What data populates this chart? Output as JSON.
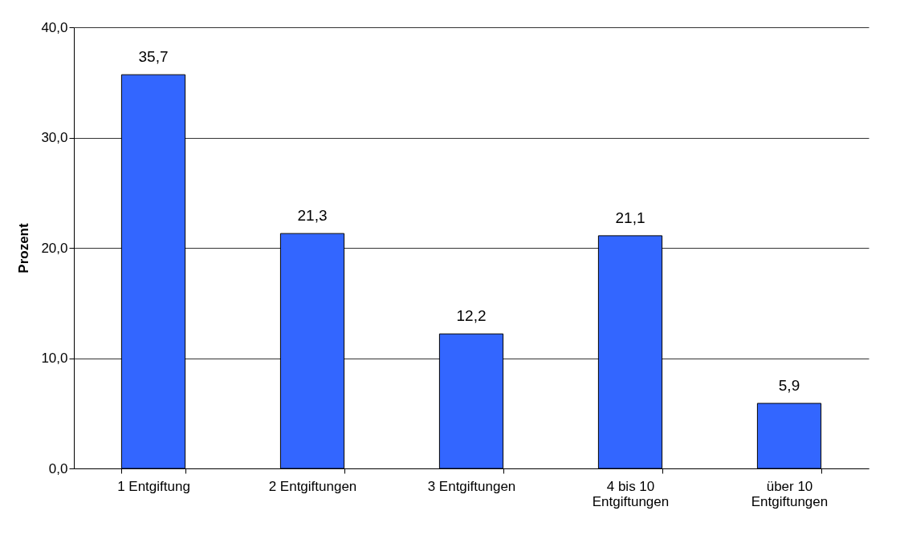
{
  "chart_data": {
    "type": "bar",
    "ylabel": "Prozent",
    "categories": [
      "1 Entgiftung",
      "2 Entgiftungen",
      "3 Entgiftungen",
      "4 bis 10 Entgiftungen",
      "über 10 Entgiftungen"
    ],
    "values": [
      35.7,
      21.3,
      12.2,
      21.1,
      5.9
    ],
    "value_labels": [
      "35,7",
      "21,3",
      "12,2",
      "21,1",
      "5,9"
    ],
    "color": "#3366ff",
    "ylim": [
      0,
      40
    ],
    "yticks": [
      {
        "value": 0,
        "label": "0,0"
      },
      {
        "value": 10,
        "label": "10,0"
      },
      {
        "value": 20,
        "label": "20,0"
      },
      {
        "value": 30,
        "label": "30,0"
      },
      {
        "value": 40,
        "label": "40,0"
      }
    ],
    "grid": "y"
  }
}
